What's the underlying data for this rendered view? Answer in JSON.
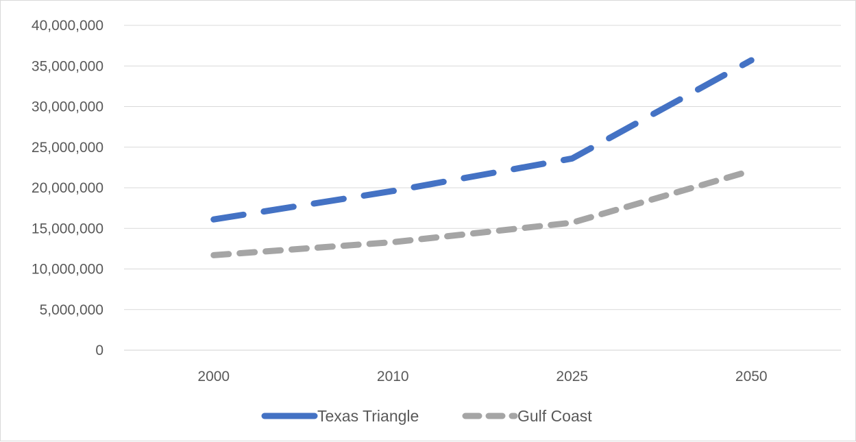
{
  "chart_data": {
    "type": "line",
    "categories": [
      "2000",
      "2010",
      "2025",
      "2050"
    ],
    "series": [
      {
        "name": "Texas Triangle",
        "values": [
          16100000,
          19600000,
          23600000,
          35700000
        ],
        "color": "#4472c4",
        "style": "long-dash"
      },
      {
        "name": "Gulf Coast",
        "values": [
          11700000,
          13300000,
          15700000,
          22100000
        ],
        "color": "#a5a5a5",
        "style": "dash"
      }
    ],
    "ylim": [
      0,
      40000000
    ],
    "yticks": [
      0,
      5000000,
      10000000,
      15000000,
      20000000,
      25000000,
      30000000,
      35000000,
      40000000
    ],
    "ytick_labels": [
      "0",
      "5,000,000",
      "10,000,000",
      "15,000,000",
      "20,000,000",
      "25,000,000",
      "30,000,000",
      "35,000,000",
      "40,000,000"
    ],
    "grid": true,
    "legend": "bottom"
  }
}
